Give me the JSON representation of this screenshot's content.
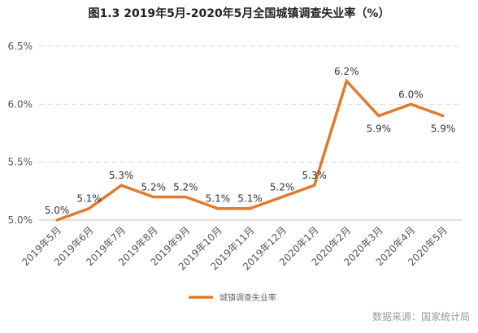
{
  "chart_data": {
    "type": "line",
    "title": "图1.3 2019年5月-2020年5月全国城镇调查失业率（%）",
    "categories": [
      "2019年5月",
      "2019年6月",
      "2019年7月",
      "2019年8月",
      "2019年9月",
      "2019年10月",
      "2019年11月",
      "2019年12月",
      "2020年1月",
      "2020年2月",
      "2020年3月",
      "2020年4月",
      "2020年5月"
    ],
    "series": [
      {
        "name": "城镇调查失业率",
        "values": [
          5.0,
          5.1,
          5.3,
          5.2,
          5.2,
          5.1,
          5.1,
          5.2,
          5.3,
          6.2,
          5.9,
          6.0,
          5.9
        ]
      }
    ],
    "data_labels": [
      "5.0%",
      "5.1%",
      "5.3%",
      "5.2%",
      "5.2%",
      "5.1%",
      "5.1%",
      "5.2%",
      "5.3%",
      "6.2%",
      "5.9%",
      "6.0%",
      "5.9%"
    ],
    "ylim": [
      5.0,
      6.5
    ],
    "yticks": [
      5.0,
      5.5,
      6.0,
      6.5
    ],
    "ytick_labels": [
      "5.0%",
      "5.5%",
      "6.0%",
      "6.5%"
    ],
    "grid": true,
    "legend_position": "bottom-center",
    "line_color": "#E07B2E",
    "grid_color": "#d9d9d9"
  },
  "source_text": "数据来源：国家统计局"
}
